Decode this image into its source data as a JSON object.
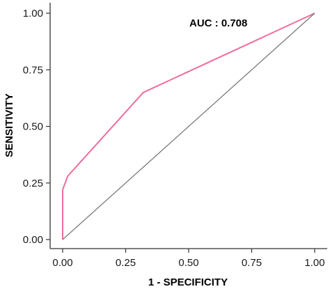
{
  "chart_data": {
    "type": "line",
    "xlabel": "1 - SPECIFICITY",
    "ylabel": "SENSITIVITY",
    "xlim": [
      0,
      1
    ],
    "ylim": [
      0,
      1
    ],
    "x_ticks": [
      "0.00",
      "0.25",
      "0.50",
      "0.75",
      "1.00"
    ],
    "y_ticks": [
      "0.00",
      "0.25",
      "0.50",
      "0.75",
      "1.00"
    ],
    "grid": false,
    "annotation": "AUC : 0.708",
    "series": [
      {
        "color": "#ee6c9e",
        "x": [
          0.0,
          0.0,
          0.0,
          0.02,
          0.32,
          1.0
        ],
        "y": [
          0.0,
          0.2,
          0.22,
          0.28,
          0.65,
          1.0
        ]
      },
      {
        "color": "#7a7a7a",
        "x": [
          0.0,
          1.0
        ],
        "y": [
          0.0,
          1.0
        ]
      }
    ]
  }
}
